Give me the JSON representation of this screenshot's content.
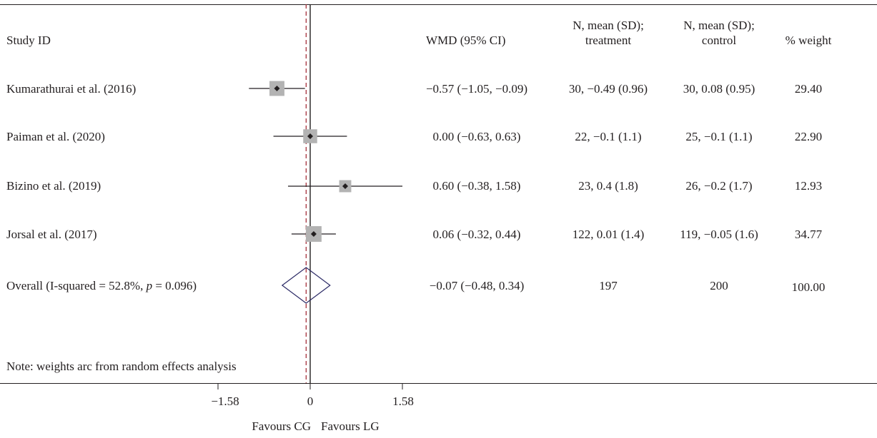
{
  "chart_data": {
    "type": "forest",
    "headers": {
      "study": "Study ID",
      "wmd": "WMD (95% CI)",
      "treatment_line1": "N, mean (SD);",
      "treatment_line2": "treatment",
      "control_line1": "N, mean (SD);",
      "control_line2": "control",
      "weight": "% weight"
    },
    "studies": [
      {
        "label": "Kumarathurai et al. (2016)",
        "estimate": -0.57,
        "ci": [
          -1.05,
          -0.09
        ],
        "wmd_text": "−0.57 (−1.05, −0.09)",
        "treatment": "30, −0.49 (0.96)",
        "control": "30, 0.08 (0.95)",
        "weight": "29.40",
        "weight_value": 29.4
      },
      {
        "label": "Paiman et al. (2020)",
        "estimate": 0.0,
        "ci": [
          -0.63,
          0.63
        ],
        "wmd_text": "0.00 (−0.63, 0.63)",
        "treatment": "22, −0.1 (1.1)",
        "control": "25, −0.1 (1.1)",
        "weight": "22.90",
        "weight_value": 22.9
      },
      {
        "label": "Bizino et al. (2019)",
        "estimate": 0.6,
        "ci": [
          -0.38,
          1.58
        ],
        "wmd_text": "0.60 (−0.38, 1.58)",
        "treatment": "23, 0.4 (1.8)",
        "control": "26, −0.2 (1.7)",
        "weight": "12.93",
        "weight_value": 12.93
      },
      {
        "label": "Jorsal et al. (2017)",
        "estimate": 0.06,
        "ci": [
          -0.32,
          0.44
        ],
        "wmd_text": "0.06 (−0.32, 0.44)",
        "treatment": "122, 0.01 (1.4)",
        "control": "119, −0.05 (1.6)",
        "weight": "34.77",
        "weight_value": 34.77
      }
    ],
    "overall": {
      "label_prefix": "Overall (I-squared = 52.8%, ",
      "label_p": "p",
      "label_suffix": " = 0.096)",
      "estimate": -0.07,
      "ci": [
        -0.48,
        0.34
      ],
      "wmd_text": "−0.07 (−0.48, 0.34)",
      "treatment": "197",
      "control": "200",
      "weight": "100.00"
    },
    "note": "Note: weights arc from random effects analysis",
    "xticks": [
      -1.58,
      0,
      1.58
    ],
    "xtick_labels": [
      "−1.58",
      "0",
      "1.58"
    ],
    "xlim": [
      -1.58,
      1.58
    ],
    "favours_left": "Favours CG",
    "favours_right": "Favours LG",
    "colors": {
      "ink": "#231f20",
      "box": "#b3b3b3",
      "dashed": "#a0212c",
      "diamond": "#2b2a66"
    }
  }
}
